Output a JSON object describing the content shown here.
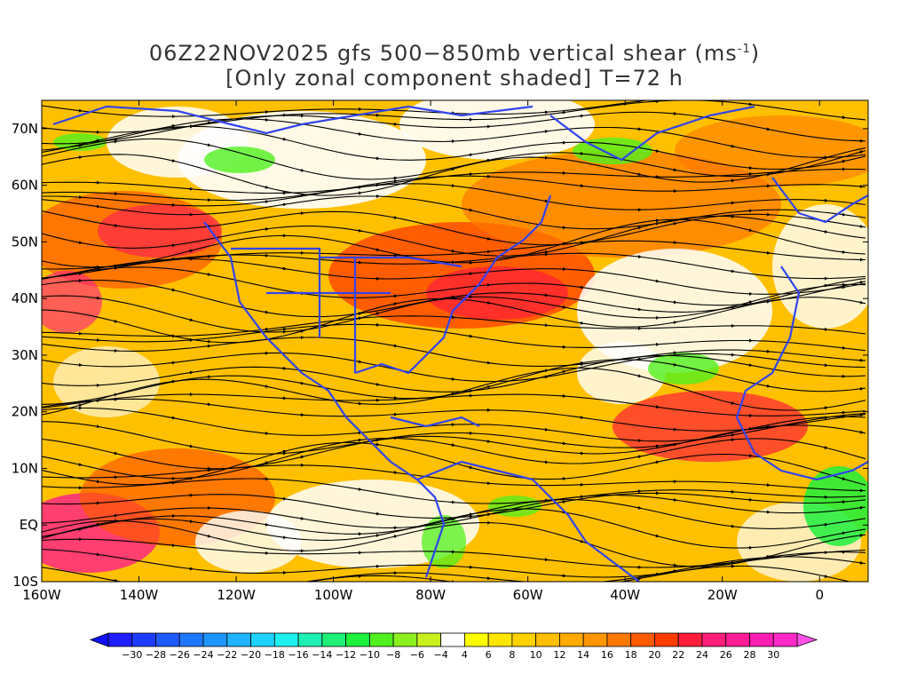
{
  "title": {
    "line1_prefix": "06Z22NOV2025 gfs 500−850mb vertical shear (ms",
    "line1_sup": "-1",
    "line1_suffix": ")",
    "line2": "[Only zonal component shaded] T=72 h"
  },
  "map": {
    "region": "North Atlantic / Pacific / Americas",
    "lon_range": [
      -160,
      10
    ],
    "lat_range": [
      -10,
      75
    ],
    "lat_ticks": [
      {
        "value": 70,
        "label": "70N"
      },
      {
        "value": 60,
        "label": "60N"
      },
      {
        "value": 50,
        "label": "50N"
      },
      {
        "value": 40,
        "label": "40N"
      },
      {
        "value": 30,
        "label": "30N"
      },
      {
        "value": 20,
        "label": "20N"
      },
      {
        "value": 10,
        "label": "10N"
      },
      {
        "value": 0,
        "label": "EQ"
      },
      {
        "value": -10,
        "label": "10S"
      }
    ],
    "lon_ticks": [
      {
        "value": -160,
        "label": "160W"
      },
      {
        "value": -140,
        "label": "140W"
      },
      {
        "value": -120,
        "label": "120W"
      },
      {
        "value": -100,
        "label": "100W"
      },
      {
        "value": -80,
        "label": "80W"
      },
      {
        "value": -60,
        "label": "60W"
      },
      {
        "value": -40,
        "label": "40W"
      },
      {
        "value": -20,
        "label": "20W"
      },
      {
        "value": 0,
        "label": "0"
      }
    ],
    "coastline_color": "#3344ee",
    "streamline_color": "#000000"
  },
  "colorbar": {
    "labels": [
      "-30",
      "-28",
      "-26",
      "-24",
      "-22",
      "-20",
      "-18",
      "-16",
      "-14",
      "-12",
      "-10",
      "-8",
      "-6",
      "-4",
      "4",
      "6",
      "8",
      "10",
      "12",
      "14",
      "16",
      "18",
      "20",
      "22",
      "24",
      "26",
      "28",
      "30"
    ],
    "colors": [
      "#1e1eff",
      "#1e3cff",
      "#1e5aff",
      "#1e78ff",
      "#1e96ff",
      "#1eb4ff",
      "#1ed2ff",
      "#1ef0f0",
      "#1ef0b4",
      "#1ef078",
      "#1ef03c",
      "#50f01e",
      "#8cf01e",
      "#c8f01e",
      "#ffffff",
      "#ffff00",
      "#ffe600",
      "#ffd200",
      "#ffbe00",
      "#ffaa00",
      "#ff9600",
      "#ff7800",
      "#ff5a00",
      "#ff3c00",
      "#ff1e3c",
      "#ff1e78",
      "#ff1e96",
      "#ff1eb4",
      "#ff28c8"
    ],
    "low_arrow_color": "#1010ff",
    "high_arrow_color": "#ff50e6"
  }
}
